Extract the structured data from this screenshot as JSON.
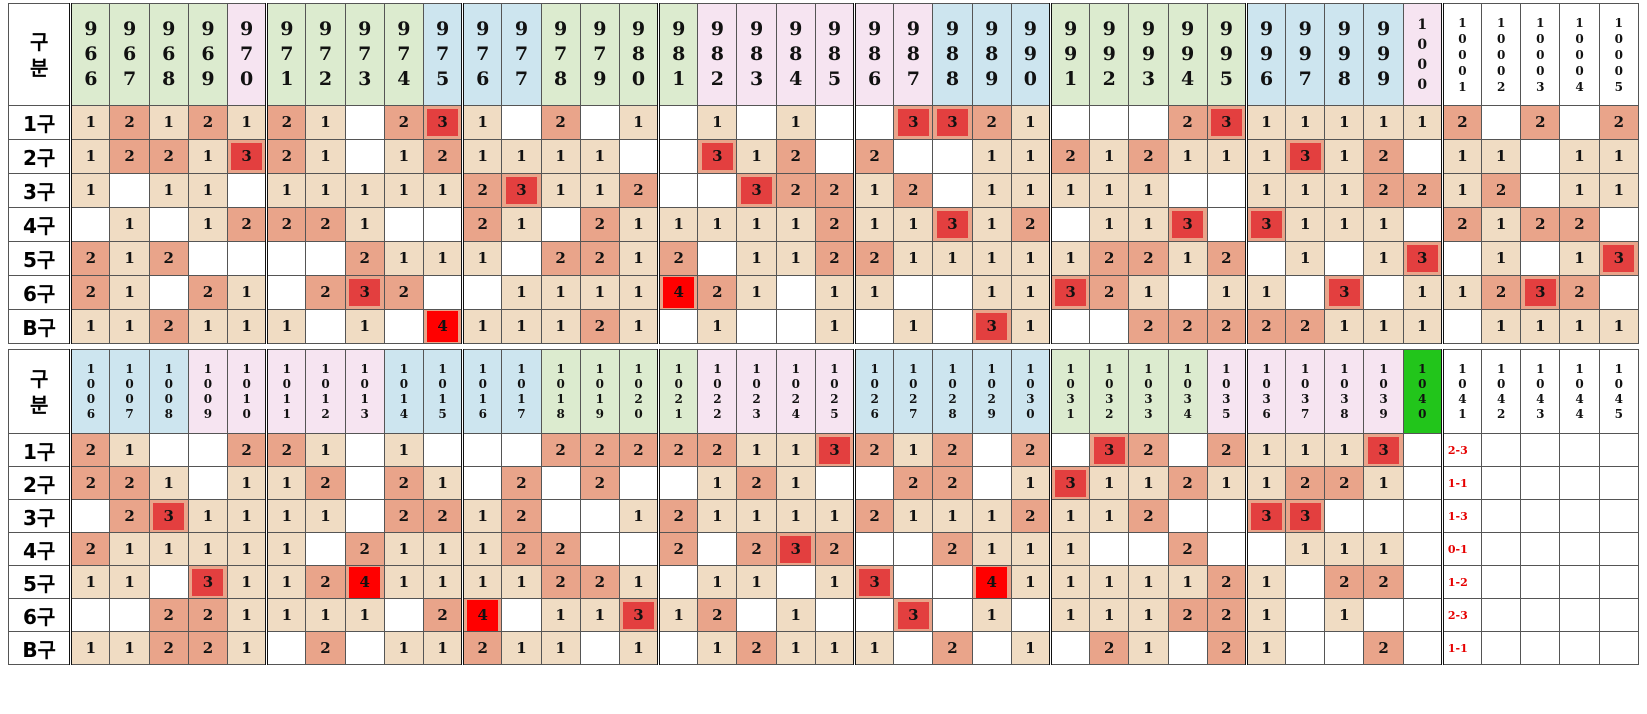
{
  "palette": {
    "v1": "#f0dcc3",
    "v2": "#e9a48a",
    "v3": "#e33f3f",
    "v4": "#ff0000",
    "blue": "#cde5ef",
    "green": "#dcebcf",
    "pink": "#f6e4f1",
    "highlight": "#22c51b"
  },
  "header_label": [
    "구",
    "분"
  ],
  "rows": [
    "1구",
    "2구",
    "3구",
    "4구",
    "5구",
    "6구",
    "B구"
  ],
  "top": {
    "columns": [
      {
        "digits": [
          "9",
          "6",
          "6"
        ],
        "bg": "green"
      },
      {
        "digits": [
          "9",
          "6",
          "7"
        ],
        "bg": "green"
      },
      {
        "digits": [
          "9",
          "6",
          "8"
        ],
        "bg": "green"
      },
      {
        "digits": [
          "9",
          "6",
          "9"
        ],
        "bg": "green"
      },
      {
        "digits": [
          "9",
          "7",
          "0"
        ],
        "bg": "pink"
      },
      {
        "digits": [
          "9",
          "7",
          "1"
        ],
        "bg": "green"
      },
      {
        "digits": [
          "9",
          "7",
          "2"
        ],
        "bg": "green"
      },
      {
        "digits": [
          "9",
          "7",
          "3"
        ],
        "bg": "green"
      },
      {
        "digits": [
          "9",
          "7",
          "4"
        ],
        "bg": "green"
      },
      {
        "digits": [
          "9",
          "7",
          "5"
        ],
        "bg": "blue"
      },
      {
        "digits": [
          "9",
          "7",
          "6"
        ],
        "bg": "blue"
      },
      {
        "digits": [
          "9",
          "7",
          "7"
        ],
        "bg": "blue"
      },
      {
        "digits": [
          "9",
          "7",
          "8"
        ],
        "bg": "green"
      },
      {
        "digits": [
          "9",
          "7",
          "9"
        ],
        "bg": "green"
      },
      {
        "digits": [
          "9",
          "8",
          "0"
        ],
        "bg": "green"
      },
      {
        "digits": [
          "9",
          "8",
          "1"
        ],
        "bg": "green"
      },
      {
        "digits": [
          "9",
          "8",
          "2"
        ],
        "bg": "pink"
      },
      {
        "digits": [
          "9",
          "8",
          "3"
        ],
        "bg": "pink"
      },
      {
        "digits": [
          "9",
          "8",
          "4"
        ],
        "bg": "pink"
      },
      {
        "digits": [
          "9",
          "8",
          "5"
        ],
        "bg": "pink"
      },
      {
        "digits": [
          "9",
          "8",
          "6"
        ],
        "bg": "pink"
      },
      {
        "digits": [
          "9",
          "8",
          "7"
        ],
        "bg": "pink"
      },
      {
        "digits": [
          "9",
          "8",
          "8"
        ],
        "bg": "blue"
      },
      {
        "digits": [
          "9",
          "8",
          "9"
        ],
        "bg": "blue"
      },
      {
        "digits": [
          "9",
          "9",
          "0"
        ],
        "bg": "blue"
      },
      {
        "digits": [
          "9",
          "9",
          "1"
        ],
        "bg": "green"
      },
      {
        "digits": [
          "9",
          "9",
          "2"
        ],
        "bg": "green"
      },
      {
        "digits": [
          "9",
          "9",
          "3"
        ],
        "bg": "green"
      },
      {
        "digits": [
          "9",
          "9",
          "4"
        ],
        "bg": "green"
      },
      {
        "digits": [
          "9",
          "9",
          "5"
        ],
        "bg": "green"
      },
      {
        "digits": [
          "9",
          "9",
          "6"
        ],
        "bg": "blue"
      },
      {
        "digits": [
          "9",
          "9",
          "7"
        ],
        "bg": "blue"
      },
      {
        "digits": [
          "9",
          "9",
          "8"
        ],
        "bg": "blue"
      },
      {
        "digits": [
          "9",
          "9",
          "9"
        ],
        "bg": "blue"
      },
      {
        "digits": [
          "1",
          "0",
          "0",
          "0"
        ],
        "bg": "pink"
      },
      {
        "digits": [
          "1",
          "0",
          "0",
          "0",
          "1"
        ],
        "bg": "white"
      },
      {
        "digits": [
          "1",
          "0",
          "0",
          "0",
          "2"
        ],
        "bg": "white"
      },
      {
        "digits": [
          "1",
          "0",
          "0",
          "0",
          "3"
        ],
        "bg": "white"
      },
      {
        "digits": [
          "1",
          "0",
          "0",
          "0",
          "4"
        ],
        "bg": "white"
      },
      {
        "digits": [
          "1",
          "0",
          "0",
          "0",
          "5"
        ],
        "bg": "white"
      }
    ],
    "cells": [
      [
        "1",
        "2",
        "1",
        "2",
        "1",
        "2",
        "1",
        "",
        "2",
        "3",
        "1",
        "",
        "2",
        "",
        "1",
        "",
        "1",
        "",
        "1",
        "",
        "",
        "3",
        "3",
        "2",
        "1",
        "",
        "",
        "",
        "2",
        "3",
        "1",
        "1",
        "1",
        "1",
        "1",
        "2",
        "",
        "2",
        "",
        "2"
      ],
      [
        "1",
        "2",
        "2",
        "1",
        "3",
        "2",
        "1",
        "",
        "1",
        "2",
        "1",
        "1",
        "1",
        "1",
        "",
        "",
        "3",
        "1",
        "2",
        "",
        "2",
        "",
        "",
        "1",
        "1",
        "2",
        "1",
        "2",
        "1",
        "1",
        "1",
        "3",
        "1",
        "2",
        "",
        "1",
        "1",
        "",
        "1",
        "1"
      ],
      [
        "1",
        "",
        "1",
        "1",
        "",
        "1",
        "1",
        "1",
        "1",
        "1",
        "2",
        "3",
        "1",
        "1",
        "2",
        "",
        "",
        "3",
        "2",
        "2",
        "1",
        "2",
        "",
        "1",
        "1",
        "1",
        "1",
        "1",
        "",
        "",
        "1",
        "1",
        "1",
        "2",
        "2",
        "1",
        "2",
        "",
        "1",
        "1"
      ],
      [
        "",
        "1",
        "",
        "1",
        "2",
        "2",
        "2",
        "1",
        "",
        "",
        "2",
        "1",
        "",
        "2",
        "1",
        "1",
        "1",
        "1",
        "1",
        "2",
        "1",
        "1",
        "3",
        "1",
        "2",
        "",
        "1",
        "1",
        "3",
        "",
        "3",
        "1",
        "1",
        "1",
        "",
        "2",
        "1",
        "2",
        "2",
        ""
      ],
      [
        "2",
        "1",
        "2",
        "",
        "",
        "",
        "",
        "2",
        "1",
        "1",
        "1",
        "",
        "2",
        "2",
        "1",
        "2",
        "",
        "1",
        "1",
        "2",
        "2",
        "1",
        "1",
        "1",
        "1",
        "1",
        "2",
        "2",
        "1",
        "2",
        "",
        "1",
        "",
        "1",
        "3",
        "",
        "1",
        "",
        "1",
        "3"
      ],
      [
        "2",
        "1",
        "",
        "2",
        "1",
        "",
        "2",
        "3",
        "2",
        "",
        "",
        "1",
        "1",
        "1",
        "1",
        "4",
        "2",
        "1",
        "",
        "1",
        "1",
        "",
        "",
        "1",
        "1",
        "3",
        "2",
        "1",
        "",
        "1",
        "1",
        "",
        "3",
        "",
        "1",
        "1",
        "2",
        "3",
        "2",
        ""
      ],
      [
        "1",
        "1",
        "2",
        "1",
        "1",
        "1",
        "",
        "1",
        "",
        "4",
        "1",
        "1",
        "1",
        "2",
        "1",
        "",
        "1",
        "",
        "",
        "1",
        "",
        "1",
        "",
        "3",
        "1",
        "",
        "",
        "2",
        "2",
        "2",
        "2",
        "2",
        "1",
        "1",
        "1",
        "",
        "1",
        "1",
        "1",
        "1"
      ]
    ]
  },
  "bottom": {
    "columns": [
      {
        "digits": [
          "1",
          "0",
          "0",
          "6"
        ],
        "bg": "blue"
      },
      {
        "digits": [
          "1",
          "0",
          "0",
          "7"
        ],
        "bg": "blue"
      },
      {
        "digits": [
          "1",
          "0",
          "0",
          "8"
        ],
        "bg": "blue"
      },
      {
        "digits": [
          "1",
          "0",
          "0",
          "9"
        ],
        "bg": "pink"
      },
      {
        "digits": [
          "1",
          "0",
          "1",
          "0"
        ],
        "bg": "pink"
      },
      {
        "digits": [
          "1",
          "0",
          "1",
          "1"
        ],
        "bg": "pink"
      },
      {
        "digits": [
          "1",
          "0",
          "1",
          "2"
        ],
        "bg": "pink"
      },
      {
        "digits": [
          "1",
          "0",
          "1",
          "3"
        ],
        "bg": "pink"
      },
      {
        "digits": [
          "1",
          "0",
          "1",
          "4"
        ],
        "bg": "blue"
      },
      {
        "digits": [
          "1",
          "0",
          "1",
          "5"
        ],
        "bg": "blue"
      },
      {
        "digits": [
          "1",
          "0",
          "1",
          "6"
        ],
        "bg": "blue"
      },
      {
        "digits": [
          "1",
          "0",
          "1",
          "7"
        ],
        "bg": "blue"
      },
      {
        "digits": [
          "1",
          "0",
          "1",
          "8"
        ],
        "bg": "green"
      },
      {
        "digits": [
          "1",
          "0",
          "1",
          "9"
        ],
        "bg": "green"
      },
      {
        "digits": [
          "1",
          "0",
          "2",
          "0"
        ],
        "bg": "green"
      },
      {
        "digits": [
          "1",
          "0",
          "2",
          "1"
        ],
        "bg": "green"
      },
      {
        "digits": [
          "1",
          "0",
          "2",
          "2"
        ],
        "bg": "pink"
      },
      {
        "digits": [
          "1",
          "0",
          "2",
          "3"
        ],
        "bg": "pink"
      },
      {
        "digits": [
          "1",
          "0",
          "2",
          "4"
        ],
        "bg": "pink"
      },
      {
        "digits": [
          "1",
          "0",
          "2",
          "5"
        ],
        "bg": "pink"
      },
      {
        "digits": [
          "1",
          "0",
          "2",
          "6"
        ],
        "bg": "blue"
      },
      {
        "digits": [
          "1",
          "0",
          "2",
          "7"
        ],
        "bg": "blue"
      },
      {
        "digits": [
          "1",
          "0",
          "2",
          "8"
        ],
        "bg": "blue"
      },
      {
        "digits": [
          "1",
          "0",
          "2",
          "9"
        ],
        "bg": "blue"
      },
      {
        "digits": [
          "1",
          "0",
          "3",
          "0"
        ],
        "bg": "blue"
      },
      {
        "digits": [
          "1",
          "0",
          "3",
          "1"
        ],
        "bg": "green"
      },
      {
        "digits": [
          "1",
          "0",
          "3",
          "2"
        ],
        "bg": "green"
      },
      {
        "digits": [
          "1",
          "0",
          "3",
          "3"
        ],
        "bg": "green"
      },
      {
        "digits": [
          "1",
          "0",
          "3",
          "4"
        ],
        "bg": "green"
      },
      {
        "digits": [
          "1",
          "0",
          "3",
          "5"
        ],
        "bg": "pink"
      },
      {
        "digits": [
          "1",
          "0",
          "3",
          "6"
        ],
        "bg": "pink"
      },
      {
        "digits": [
          "1",
          "0",
          "3",
          "7"
        ],
        "bg": "pink"
      },
      {
        "digits": [
          "1",
          "0",
          "3",
          "8"
        ],
        "bg": "pink"
      },
      {
        "digits": [
          "1",
          "0",
          "3",
          "9"
        ],
        "bg": "pink"
      },
      {
        "digits": [
          "1",
          "0",
          "4",
          "0"
        ],
        "bg": "highlight"
      },
      {
        "digits": [
          "1",
          "0",
          "4",
          "1"
        ],
        "bg": "white"
      },
      {
        "digits": [
          "1",
          "0",
          "4",
          "2"
        ],
        "bg": "white"
      },
      {
        "digits": [
          "1",
          "0",
          "4",
          "3"
        ],
        "bg": "white"
      },
      {
        "digits": [
          "1",
          "0",
          "4",
          "4"
        ],
        "bg": "white"
      },
      {
        "digits": [
          "1",
          "0",
          "4",
          "5"
        ],
        "bg": "white"
      }
    ],
    "cells": [
      [
        "2",
        "1",
        "",
        "",
        "2",
        "2",
        "1",
        "",
        "1",
        "",
        "",
        "",
        "2",
        "2",
        "2",
        "2",
        "2",
        "1",
        "1",
        "3",
        "2",
        "1",
        "2",
        "",
        "2",
        "",
        "3",
        "2",
        "",
        "2",
        "1",
        "1",
        "1",
        "3",
        "",
        "2-3",
        "",
        "",
        "",
        ""
      ],
      [
        "2",
        "2",
        "1",
        "",
        "1",
        "1",
        "2",
        "",
        "2",
        "1",
        "",
        "2",
        "",
        "2",
        "",
        "",
        "1",
        "2",
        "1",
        "",
        "",
        "2",
        "2",
        "",
        "1",
        "3",
        "1",
        "1",
        "2",
        "1",
        "1",
        "2",
        "2",
        "1",
        "",
        "1-1",
        "",
        "",
        "",
        ""
      ],
      [
        "",
        "2",
        "3",
        "1",
        "1",
        "1",
        "1",
        "",
        "2",
        "2",
        "1",
        "2",
        "",
        "",
        "1",
        "2",
        "1",
        "1",
        "1",
        "1",
        "2",
        "1",
        "1",
        "1",
        "2",
        "1",
        "1",
        "2",
        "",
        "",
        "3",
        "3",
        "",
        "",
        "",
        "1-3",
        "",
        "",
        "",
        ""
      ],
      [
        "2",
        "1",
        "1",
        "1",
        "1",
        "1",
        "",
        "2",
        "1",
        "1",
        "1",
        "2",
        "2",
        "",
        "",
        "2",
        "",
        "2",
        "3",
        "2",
        "",
        "",
        "2",
        "1",
        "1",
        "1",
        "",
        "",
        "2",
        "",
        "",
        "1",
        "1",
        "1",
        "",
        "0-1",
        "",
        "",
        "",
        ""
      ],
      [
        "1",
        "1",
        "",
        "3",
        "1",
        "1",
        "2",
        "4",
        "1",
        "1",
        "1",
        "1",
        "2",
        "2",
        "1",
        "",
        "1",
        "1",
        "",
        "1",
        "3",
        "",
        "",
        "4",
        "1",
        "1",
        "1",
        "1",
        "1",
        "2",
        "1",
        "",
        "2",
        "2",
        "",
        "1-2",
        "",
        "",
        "",
        ""
      ],
      [
        "",
        "",
        "2",
        "2",
        "1",
        "1",
        "1",
        "1",
        "",
        "2",
        "4",
        "",
        "1",
        "1",
        "3",
        "1",
        "2",
        "",
        "1",
        "",
        "",
        "3",
        "",
        "1",
        "",
        "1",
        "1",
        "1",
        "2",
        "2",
        "1",
        "",
        "1",
        "",
        "",
        "2-3",
        "",
        "",
        "",
        ""
      ],
      [
        "1",
        "1",
        "2",
        "2",
        "1",
        "",
        "2",
        "",
        "1",
        "1",
        "2",
        "1",
        "1",
        "",
        "1",
        "",
        "1",
        "2",
        "1",
        "1",
        "1",
        "",
        "2",
        "",
        "1",
        "",
        "2",
        "1",
        "",
        "2",
        "1",
        "",
        "",
        "2",
        "",
        "1-1",
        "",
        "",
        "",
        ""
      ]
    ]
  }
}
